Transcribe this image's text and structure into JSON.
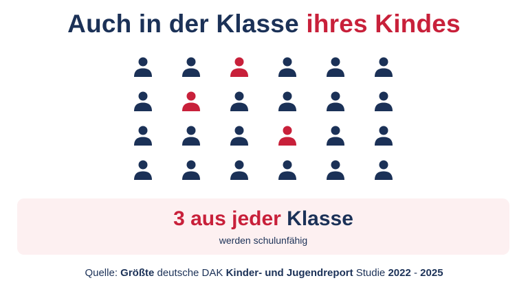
{
  "title": {
    "part1": "Auch in der Klasse",
    "part2": "ihres Kindes"
  },
  "grid": {
    "rows": 4,
    "cols": 6,
    "highlighted_count": 3,
    "highlighted": [
      [
        0,
        2
      ],
      [
        1,
        1
      ],
      [
        2,
        3
      ]
    ],
    "colors": {
      "default": "#1b3157",
      "highlight": "#c8203a"
    },
    "icon": "person-icon"
  },
  "banner": {
    "main_red": "3 aus jeder",
    "main_dark": "Klasse",
    "sub": "werden schulunfähig"
  },
  "source": {
    "p1": "Quelle:",
    "p2": "Größte",
    "p3": "deutsche DAK",
    "p4": "Kinder- und Jugendreport",
    "p5": "Studie",
    "p6": "2022",
    "p7": "-",
    "p8": "2025"
  },
  "colors": {
    "navy": "#1b3157",
    "red": "#c8203a",
    "banner_bg": "#fdf0f1"
  }
}
